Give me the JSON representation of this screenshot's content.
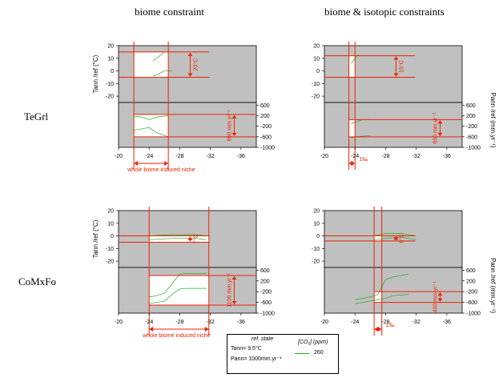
{
  "column_titles": [
    "biome constraint",
    "biome & isotopic constraints"
  ],
  "row_labels": [
    "TeGrl",
    "CoMxFo"
  ],
  "axes": {
    "temp_ylabel": "Tann /ref (°C)",
    "precip_ylabel": "Pann /ref (mm.yr⁻¹)",
    "x_ticks": [
      "-20",
      "-24",
      "-28",
      "-32",
      "-36"
    ],
    "temp_ticks": [
      "20",
      "10",
      "0",
      "-10",
      "-20"
    ],
    "precip_ticks": [
      "600",
      "200",
      "-200",
      "-600",
      "-1000"
    ]
  },
  "legend": {
    "ref_title": "ref. state",
    "ref_tann": "Tann= 9.5°C",
    "ref_pann": "Pann= 1000mm.yr⁻¹",
    "co2_title": "[CO₂] (ppm)",
    "co2_value": "260",
    "line_color": "#22aa22"
  },
  "colors": {
    "panel_bg": "#c0c0c0",
    "niche": "#ffffff",
    "annotation": "#ee2200"
  },
  "chart_data": [
    {
      "type": "line",
      "panel": "TeGrl / biome constraint",
      "x_range": [
        -20,
        -38
      ],
      "temp_range": [
        -25,
        20
      ],
      "precip_range": [
        -1000,
        700
      ],
      "temp_lines": [
        {
          "x": [
            -24.5,
            -25,
            -26,
            -27
          ],
          "y": [
            8,
            10,
            15,
            15
          ]
        },
        {
          "x": [
            -24.5,
            -25,
            -26,
            -27
          ],
          "y": [
            -4,
            -3,
            0,
            0
          ]
        }
      ],
      "precip_lines": [
        {
          "x": [
            -22,
            -23,
            -24,
            -25,
            -26.5
          ],
          "y": [
            180,
            150,
            50,
            150,
            200
          ]
        },
        {
          "x": [
            -22,
            -23,
            -24,
            -25,
            -26.5
          ],
          "y": [
            -350,
            -300,
            -250,
            -450,
            -600
          ]
        }
      ],
      "niche_x": [
        -22,
        -26.5
      ],
      "temp_bounds": [
        -5,
        15
      ],
      "precip_bounds": [
        -600,
        250
      ],
      "annotations": {
        "temp_range": "20°C",
        "precip_range": "850 mm.yr⁻¹",
        "niche_label": "whole biome induced niche"
      }
    },
    {
      "type": "line",
      "panel": "TeGrl / biome & isotopic constraints",
      "x_range": [
        -20,
        -38
      ],
      "temp_range": [
        -25,
        20
      ],
      "precip_range": [
        -1000,
        700
      ],
      "temp_lines": [
        {
          "x": [
            -23.5,
            -24,
            -24.5
          ],
          "y": [
            6,
            10,
            13
          ]
        }
      ],
      "precip_lines": [
        {
          "x": [
            -23.5,
            -24,
            -25,
            -26
          ],
          "y": [
            -100,
            -50,
            50,
            60
          ]
        },
        {
          "x": [
            -23.5,
            -24,
            -25,
            -26
          ],
          "y": [
            -650,
            -600,
            -580,
            -550
          ]
        }
      ],
      "niche_x": [
        -23.2,
        -24
      ],
      "temp_bounds": [
        -5,
        12
      ],
      "precip_bounds": [
        -600,
        50
      ],
      "annotations": {
        "temp_range": "15°C",
        "precip_range": "650 mm.yr⁻¹",
        "isotope_label": "1‰"
      }
    },
    {
      "type": "line",
      "panel": "CoMxFo / biome constraint",
      "x_range": [
        -20,
        -38
      ],
      "temp_range": [
        -25,
        20
      ],
      "precip_range": [
        -1000,
        700
      ],
      "temp_lines": [
        {
          "x": [
            -24,
            -27,
            -30,
            -31.5
          ],
          "y": [
            0,
            1,
            1,
            0
          ]
        },
        {
          "x": [
            -24,
            -27,
            -30,
            -31.5
          ],
          "y": [
            -3,
            -2,
            -2,
            -3
          ]
        }
      ],
      "precip_lines": [
        {
          "x": [
            -24,
            -25,
            -26,
            -27,
            -28,
            -29,
            -31.5
          ],
          "y": [
            -400,
            -350,
            -250,
            100,
            450,
            480,
            480
          ]
        },
        {
          "x": [
            -24,
            -25,
            -26,
            -27,
            -28,
            -29,
            -31.5
          ],
          "y": [
            -650,
            -600,
            -550,
            -300,
            -100,
            -80,
            -80
          ]
        }
      ],
      "niche_x": [
        -24,
        -31.8
      ],
      "temp_bounds": [
        -5,
        0
      ],
      "precip_bounds": [
        -700,
        400
      ],
      "annotations": {
        "temp_range": "7°C",
        "precip_range": "1100 mm.yr⁻¹",
        "niche_label": "whole biome induced niche"
      }
    },
    {
      "type": "line",
      "panel": "CoMxFo / biome & isotopic constraints",
      "x_range": [
        -20,
        -38
      ],
      "temp_range": [
        -25,
        20
      ],
      "precip_range": [
        -1000,
        700
      ],
      "temp_lines": [
        {
          "x": [
            -26.5,
            -28,
            -30,
            -32
          ],
          "y": [
            0,
            2,
            2,
            0
          ]
        },
        {
          "x": [
            -26.5,
            -28,
            -30,
            -32
          ],
          "y": [
            -3,
            -2,
            -1,
            -3
          ]
        }
      ],
      "precip_lines": [
        {
          "x": [
            -24,
            -26,
            -27,
            -28,
            -29,
            -31
          ],
          "y": [
            -500,
            -400,
            -300,
            250,
            350,
            450
          ]
        },
        {
          "x": [
            -24,
            -26,
            -27,
            -28,
            -29,
            -31
          ],
          "y": [
            -650,
            -550,
            -500,
            -450,
            -350,
            -300
          ]
        }
      ],
      "niche_x": [
        -26.5,
        -27.5
      ],
      "temp_bounds": [
        -4,
        0
      ],
      "precip_bounds": [
        -600,
        -200
      ],
      "annotations": {
        "temp_range": "6°C",
        "precip_range": "400 mm.yr⁻¹",
        "isotope_label": "1‰"
      }
    }
  ]
}
